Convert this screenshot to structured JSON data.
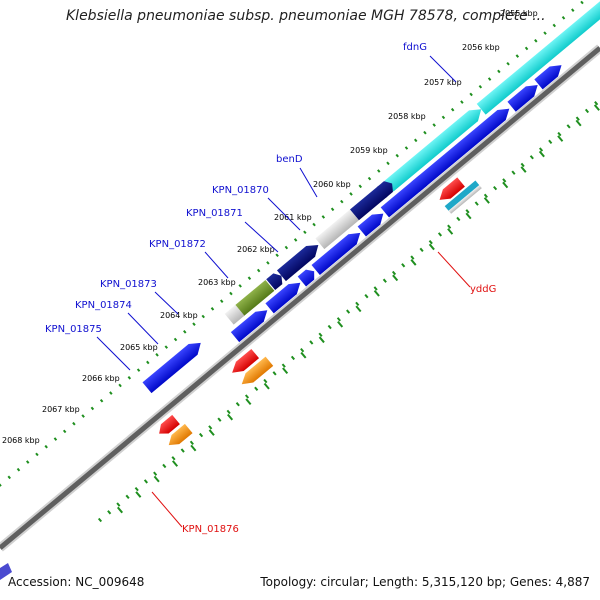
{
  "title": "Klebsiella pneumoniae subsp. pneumoniae MGH 78578, complete ...",
  "footer": {
    "accession": "Accession: NC_009648",
    "summary": "Topology: circular; Length: 5,315,120 bp; Genes: 4,887"
  },
  "colors": {
    "forward_gene": "#0a14e6",
    "cyan_gene": "#19e6e6",
    "navy_gene": "#050a78",
    "olive_gene": "#6e9a28",
    "red_gene": "#ff0000",
    "orange_gene": "#ff9900",
    "tick": "#1f8f1f",
    "backbone": "#6e6e6e",
    "label_blue": "#1010d0",
    "label_red": "#e01010"
  },
  "kbp_labels": [
    "2055 kbp",
    "2056 kbp",
    "2057 kbp",
    "2058 kbp",
    "2059 kbp",
    "2060 kbp",
    "2061 kbp",
    "2062 kbp",
    "2063 kbp",
    "2064 kbp",
    "2065 kbp",
    "2066 kbp",
    "2067 kbp",
    "2068 kbp"
  ],
  "gene_labels_top": [
    "fdnG",
    "benD",
    "KPN_01870",
    "KPN_01871",
    "KPN_01872",
    "KPN_01873",
    "KPN_01874",
    "KPN_01875"
  ],
  "gene_labels_bottom": [
    "yddG",
    "KPN_01876"
  ]
}
